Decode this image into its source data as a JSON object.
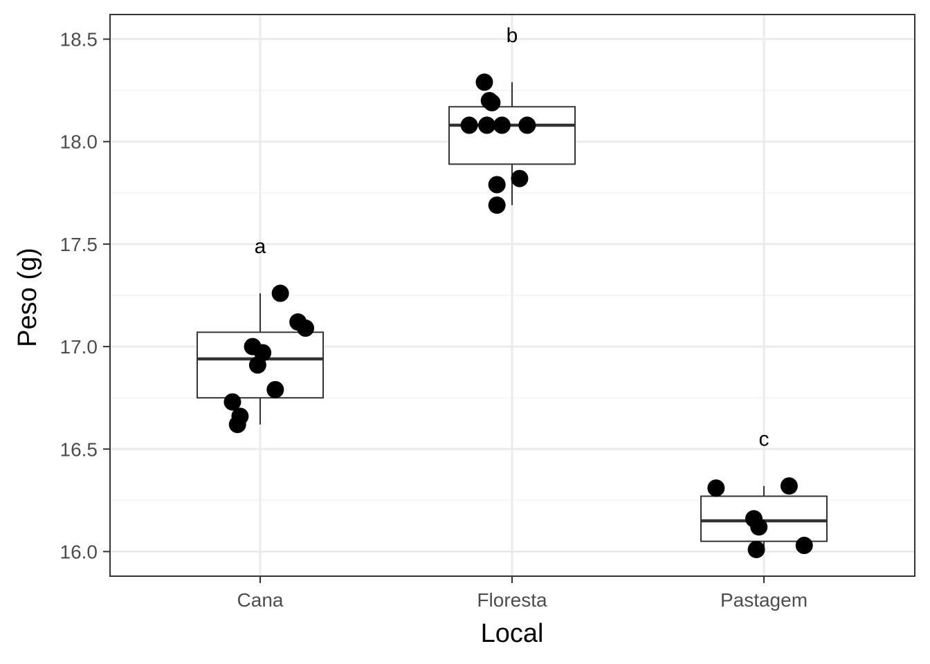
{
  "chart_data": {
    "type": "boxplot",
    "xlabel": "Local",
    "ylabel": "Peso (g)",
    "ylim": [
      15.88,
      18.62
    ],
    "yticks": [
      16.0,
      16.5,
      17.0,
      17.5,
      18.0,
      18.5
    ],
    "ytick_labels": [
      "16.0",
      "16.5",
      "17.0",
      "17.5",
      "18.0",
      "18.5"
    ],
    "grid": true,
    "categories": [
      "Cana",
      "Floresta",
      "Pastagem"
    ],
    "boxes": [
      {
        "category": "Cana",
        "min": 16.62,
        "q1": 16.75,
        "median": 16.94,
        "q3": 17.07,
        "max": 17.26,
        "letter": "a"
      },
      {
        "category": "Floresta",
        "min": 17.69,
        "q1": 17.89,
        "median": 18.08,
        "q3": 18.17,
        "max": 18.29,
        "letter": "b"
      },
      {
        "category": "Pastagem",
        "min": 16.01,
        "q1": 16.05,
        "median": 16.15,
        "q3": 16.27,
        "max": 16.32,
        "letter": "c"
      }
    ],
    "points": [
      {
        "category": "Cana",
        "jitter": 0.08,
        "y": 17.26
      },
      {
        "category": "Cana",
        "jitter": 0.15,
        "y": 17.12
      },
      {
        "category": "Cana",
        "jitter": 0.18,
        "y": 17.09
      },
      {
        "category": "Cana",
        "jitter": -0.03,
        "y": 17.0
      },
      {
        "category": "Cana",
        "jitter": 0.01,
        "y": 16.97
      },
      {
        "category": "Cana",
        "jitter": -0.01,
        "y": 16.91
      },
      {
        "category": "Cana",
        "jitter": 0.06,
        "y": 16.79
      },
      {
        "category": "Cana",
        "jitter": -0.11,
        "y": 16.73
      },
      {
        "category": "Cana",
        "jitter": -0.08,
        "y": 16.66
      },
      {
        "category": "Cana",
        "jitter": -0.09,
        "y": 16.62
      },
      {
        "category": "Floresta",
        "jitter": -0.11,
        "y": 18.29
      },
      {
        "category": "Floresta",
        "jitter": -0.09,
        "y": 18.2
      },
      {
        "category": "Floresta",
        "jitter": -0.08,
        "y": 18.19
      },
      {
        "category": "Floresta",
        "jitter": -0.17,
        "y": 18.08
      },
      {
        "category": "Floresta",
        "jitter": -0.1,
        "y": 18.08
      },
      {
        "category": "Floresta",
        "jitter": -0.04,
        "y": 18.08
      },
      {
        "category": "Floresta",
        "jitter": 0.06,
        "y": 18.08
      },
      {
        "category": "Floresta",
        "jitter": 0.03,
        "y": 17.82
      },
      {
        "category": "Floresta",
        "jitter": -0.06,
        "y": 17.79
      },
      {
        "category": "Floresta",
        "jitter": -0.06,
        "y": 17.69
      },
      {
        "category": "Pastagem",
        "jitter": 0.1,
        "y": 16.32
      },
      {
        "category": "Pastagem",
        "jitter": -0.19,
        "y": 16.31
      },
      {
        "category": "Pastagem",
        "jitter": -0.04,
        "y": 16.16
      },
      {
        "category": "Pastagem",
        "jitter": -0.02,
        "y": 16.12
      },
      {
        "category": "Pastagem",
        "jitter": 0.16,
        "y": 16.03
      },
      {
        "category": "Pastagem",
        "jitter": -0.03,
        "y": 16.01
      }
    ]
  },
  "colors": {
    "panel_border": "#333333",
    "grid_major": "#ebebeb",
    "grid_minor": "#f2f2f2",
    "box_line": "#333333",
    "points": "#000000",
    "tick_text": "#4d4d4d",
    "title_text": "#000000"
  }
}
